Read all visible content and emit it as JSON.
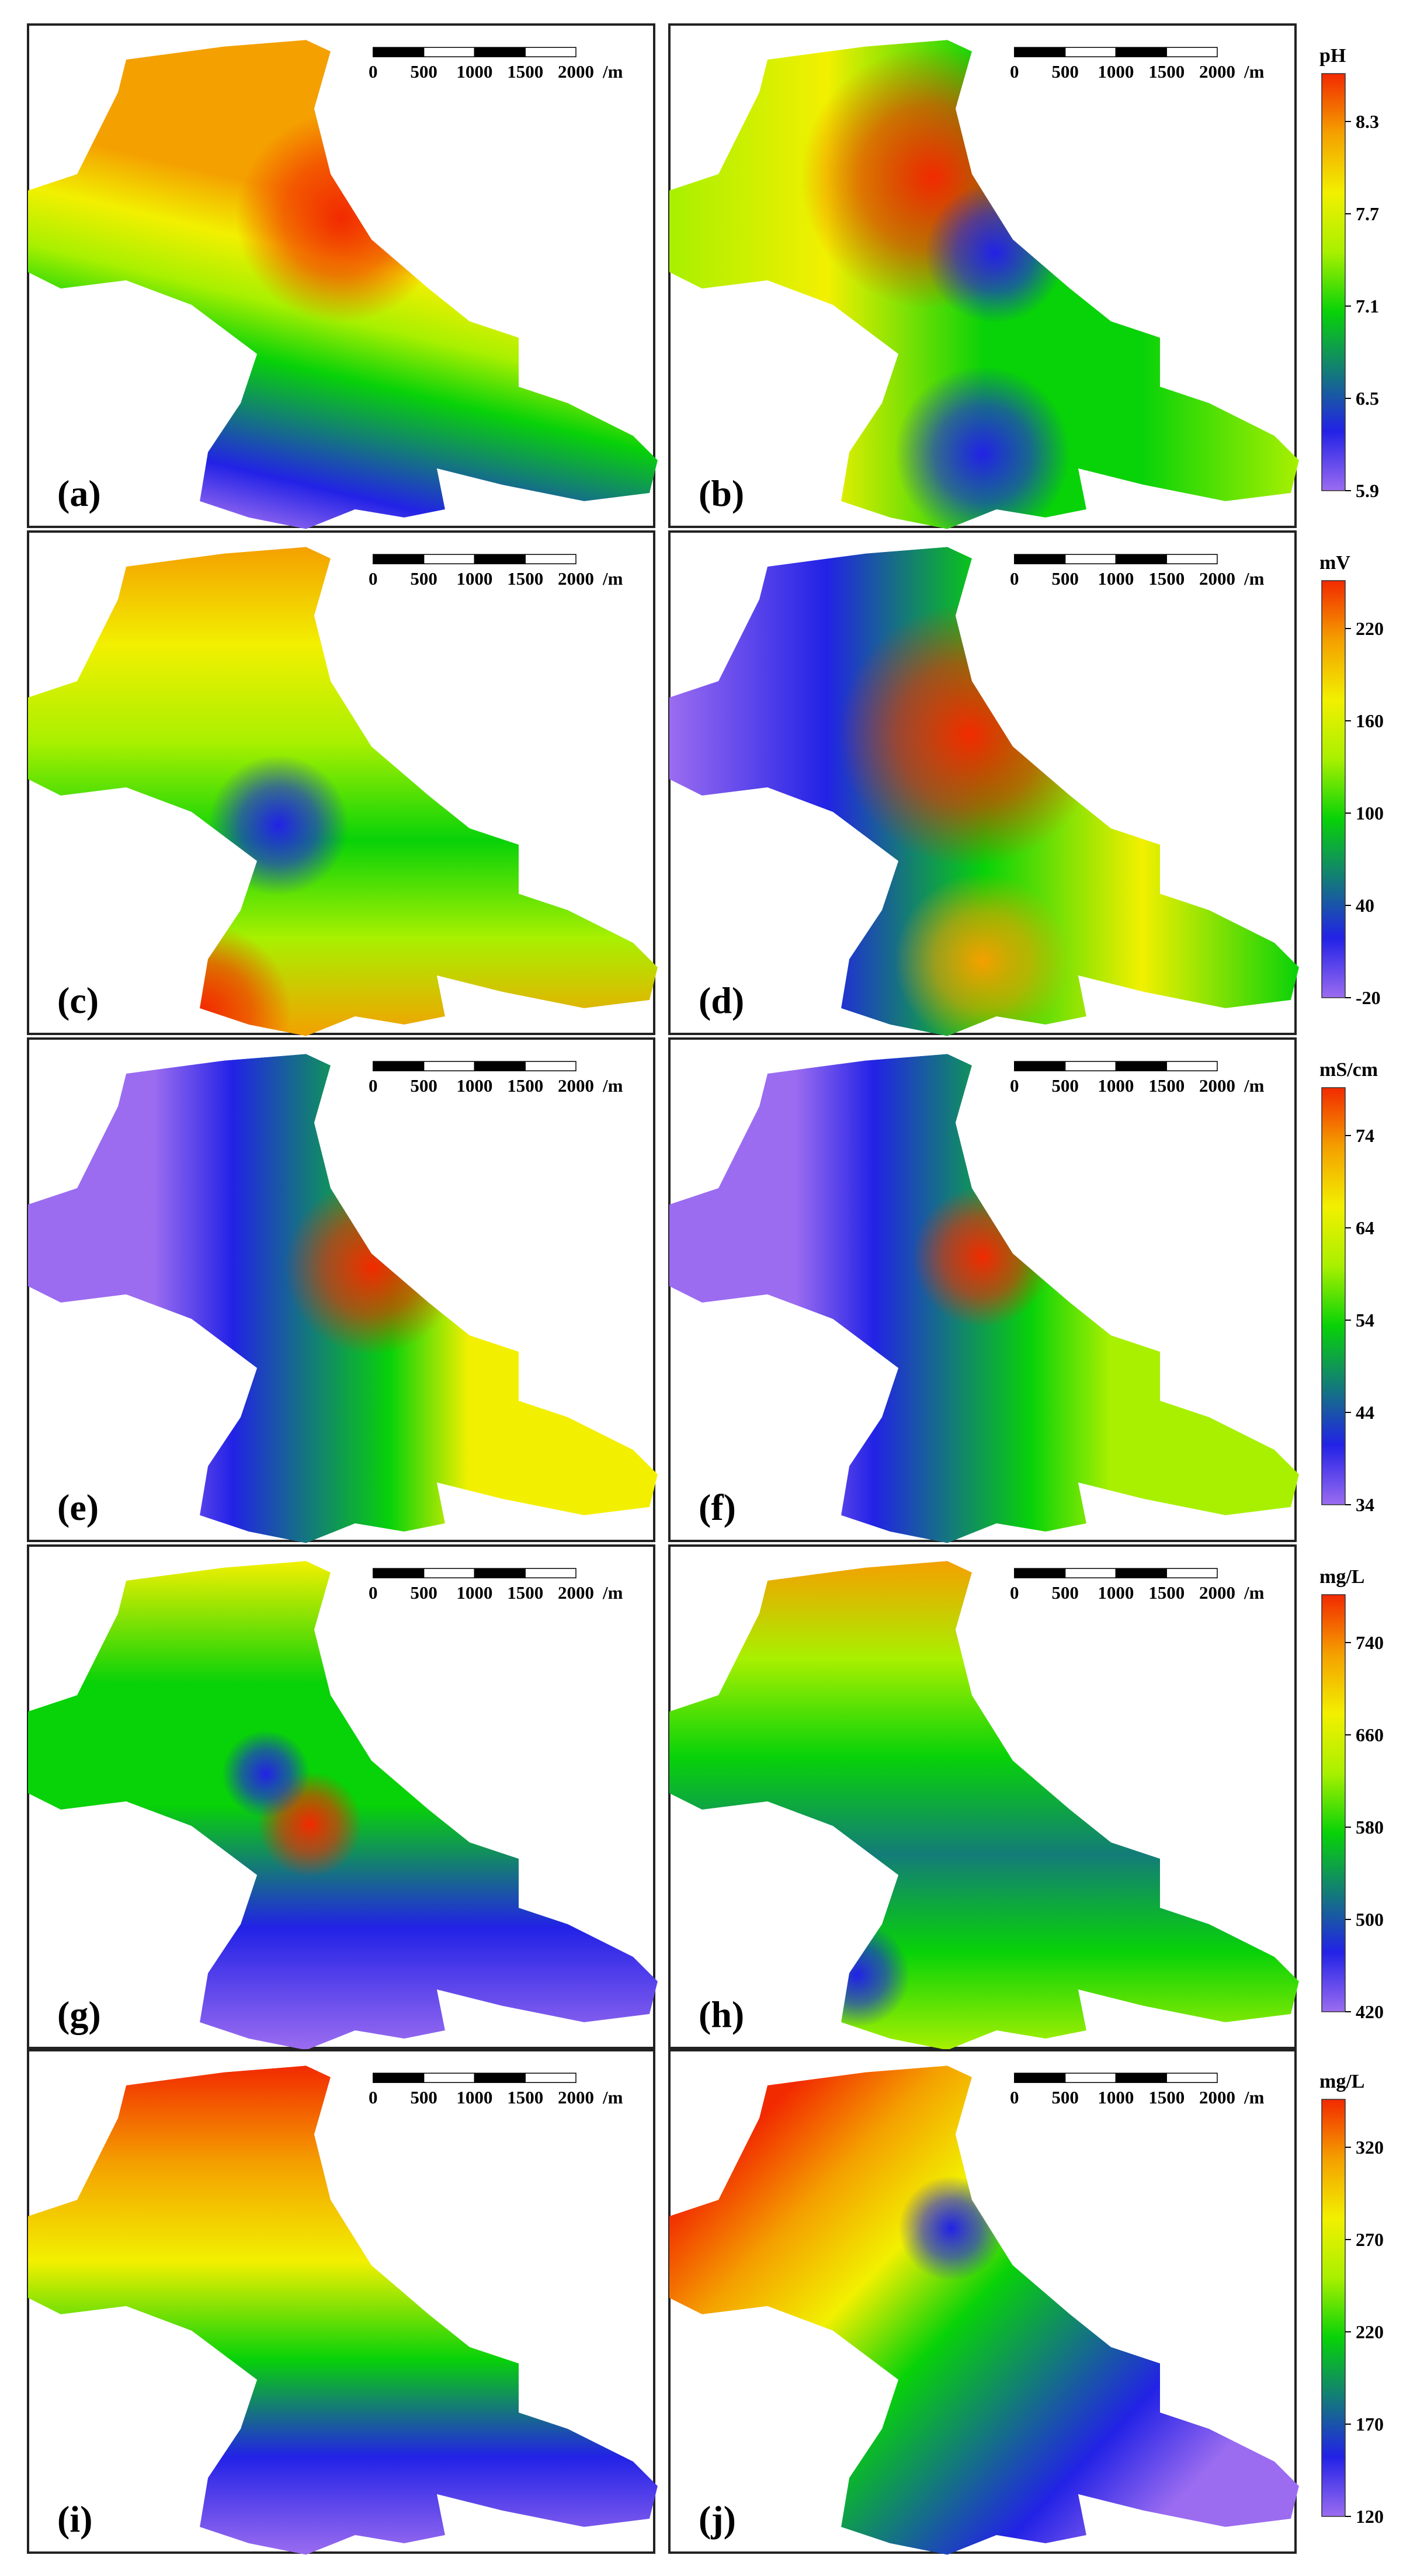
{
  "panels": [
    {
      "label": "(a)"
    },
    {
      "label": "(b)"
    },
    {
      "label": "(c)"
    },
    {
      "label": "(d)"
    },
    {
      "label": "(e)"
    },
    {
      "label": "(f)"
    },
    {
      "label": "(g)"
    },
    {
      "label": "(h)"
    },
    {
      "label": "(i)"
    },
    {
      "label": "(j)"
    }
  ],
  "scale_bar": {
    "ticks": [
      "0",
      "500",
      "1000",
      "1500",
      "2000"
    ],
    "unit": "/m"
  },
  "colorbars": [
    {
      "unit": "pH",
      "ticks": [
        "8.3",
        "7.7",
        "7.1",
        "6.5",
        "5.9"
      ]
    },
    {
      "unit": "mV",
      "ticks": [
        "220",
        "160",
        "100",
        "40",
        "-20"
      ]
    },
    {
      "unit": "mS/cm",
      "ticks": [
        "74",
        "64",
        "54",
        "44",
        "34"
      ]
    },
    {
      "unit": "mg/L",
      "ticks": [
        "740",
        "660",
        "580",
        "500",
        "420"
      ]
    },
    {
      "unit": "mg/L",
      "ticks": [
        "320",
        "270",
        "220",
        "170",
        "120"
      ]
    }
  ]
}
